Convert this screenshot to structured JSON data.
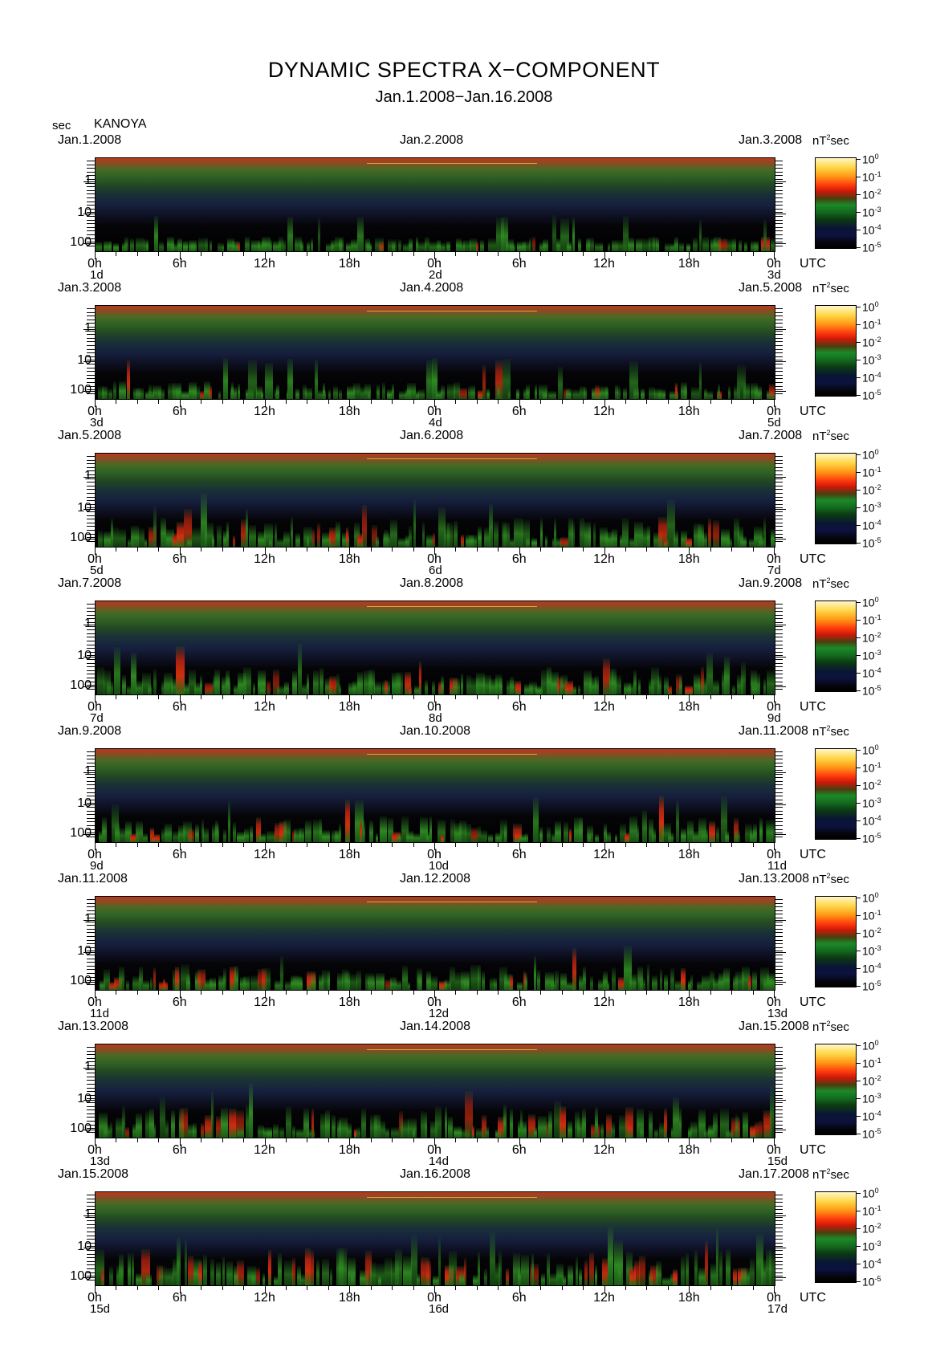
{
  "chart_data": {
    "type": "heatmap",
    "title": "DYNAMIC SPECTRA X−COMPONENT",
    "subtitle": "Jan.1.2008−Jan.16.2008",
    "station": "KANOYA",
    "ylabel": "sec",
    "yticks": [
      "1",
      "10",
      "100"
    ],
    "xunit": "UTC",
    "xticks": [
      "0h",
      "6h",
      "12h",
      "18h",
      "0h",
      "6h",
      "12h",
      "18h",
      "0h"
    ],
    "colorbar_unit": "nT²sec",
    "colorbar_unit_base": "nT",
    "colorbar_unit_exp": "2",
    "colorbar_unit_tail": "sec",
    "colorbar_labels": [
      {
        "base": "10",
        "exp": "0"
      },
      {
        "base": "10",
        "exp": "-1"
      },
      {
        "base": "10",
        "exp": "-2"
      },
      {
        "base": "10",
        "exp": "-3"
      },
      {
        "base": "10",
        "exp": "-4"
      },
      {
        "base": "10",
        "exp": "-5"
      }
    ],
    "panels": [
      {
        "start": "Jan.1.2008",
        "mid": "Jan.2.2008",
        "end": "Jan.3.2008",
        "day0": "1d",
        "day1": "2d",
        "day2": "3d",
        "activity": 0.18
      },
      {
        "start": "Jan.3.2008",
        "mid": "Jan.4.2008",
        "end": "Jan.5.2008",
        "day0": "3d",
        "day1": "4d",
        "day2": "5d",
        "activity": 0.25
      },
      {
        "start": "Jan.5.2008",
        "mid": "Jan.6.2008",
        "end": "Jan.7.2008",
        "day0": "5d",
        "day1": "6d",
        "day2": "7d",
        "activity": 0.55
      },
      {
        "start": "Jan.7.2008",
        "mid": "Jan.8.2008",
        "end": "Jan.9.2008",
        "day0": "7d",
        "day1": "8d",
        "day2": "9d",
        "activity": 0.5
      },
      {
        "start": "Jan.9.2008",
        "mid": "Jan.10.2008",
        "end": "Jan.11.2008",
        "day0": "9d",
        "day1": "10d",
        "day2": "11d",
        "activity": 0.45
      },
      {
        "start": "Jan.11.2008",
        "mid": "Jan.12.2008",
        "end": "Jan.13.2008",
        "day0": "11d",
        "day1": "12d",
        "day2": "13d",
        "activity": 0.45
      },
      {
        "start": "Jan.13.2008",
        "mid": "Jan.14.2008",
        "end": "Jan.15.2008",
        "day0": "13d",
        "day1": "14d",
        "day2": "15d",
        "activity": 0.6
      },
      {
        "start": "Jan.15.2008",
        "mid": "Jan.16.2008",
        "end": "Jan.17.2008",
        "day0": "15d",
        "day1": "16d",
        "day2": "17d",
        "activity": 0.75
      }
    ]
  }
}
